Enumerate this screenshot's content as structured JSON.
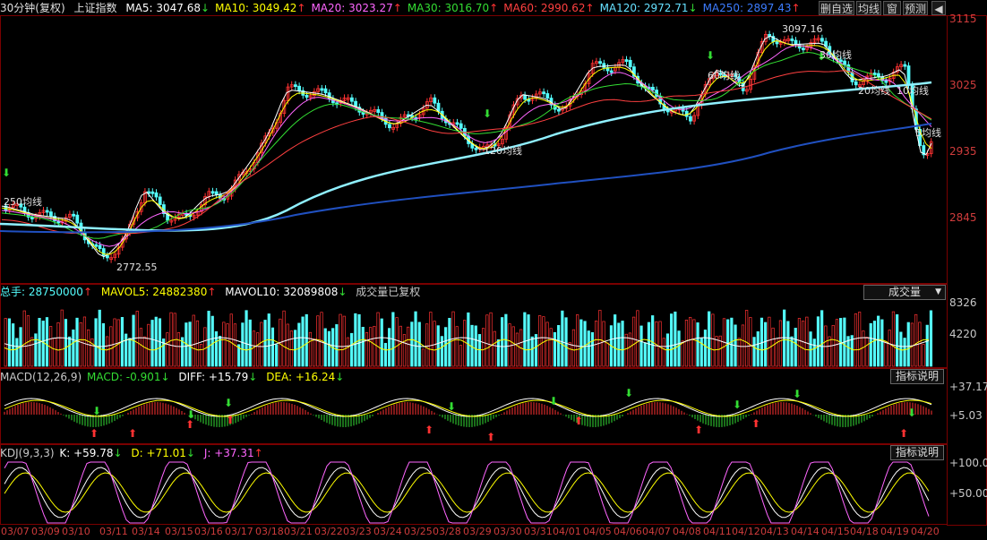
{
  "toolbar": {
    "period": "30分钟(复权)",
    "buttons": [
      "删自选",
      "均线",
      "窗",
      "预测"
    ],
    "arrow": "◀"
  },
  "main_header": {
    "index_name": "上证指数",
    "ma": [
      {
        "label": "MA5: 3047.68",
        "arrow": "↓",
        "color": "#ffffff"
      },
      {
        "label": "MA10: 3049.42",
        "arrow": "↑",
        "color": "#ffff00"
      },
      {
        "label": "MA20: 3023.27",
        "arrow": "↑",
        "color": "#ff66ff"
      },
      {
        "label": "MA30: 3016.70",
        "arrow": "↑",
        "color": "#33dd33"
      },
      {
        "label": "MA60: 2990.62",
        "arrow": "↑",
        "color": "#ff4040"
      },
      {
        "label": "MA120: 2972.71",
        "arrow": "↓",
        "color": "#66e0ff"
      },
      {
        "label": "MA250: 2897.43",
        "arrow": "↑",
        "color": "#3c7cff"
      }
    ]
  },
  "price_axis": [
    "3115",
    "3025",
    "2935",
    "2845"
  ],
  "annotations": {
    "high": "3097.16",
    "low": "2772.55",
    "ma_tags": [
      "250均线",
      "120均线",
      "60均线",
      "30均线",
      "20均线",
      "10均线",
      "5均线"
    ]
  },
  "volume_header": {
    "total": "总手: 28750000",
    "total_arrow": "↑",
    "mavol5": "MAVOL5: 24882380",
    "mavol5_arrow": "↑",
    "mavol10": "MAVOL10: 32089808",
    "mavol10_arrow": "↓",
    "note": "成交量已复权"
  },
  "volume_button": "成交量",
  "volume_axis": [
    "8326",
    "4220"
  ],
  "macd_header": {
    "title": "MACD(12,26,9)",
    "macd": "MACD: -0.901",
    "macd_arrow": "↓",
    "diff": "DIFF: +15.79",
    "diff_arrow": "↓",
    "dea": "DEA: +16.24",
    "dea_arrow": "↓"
  },
  "macd_button": "指标说明",
  "macd_axis": [
    "+37.17",
    "+5.03"
  ],
  "kdj_header": {
    "title": "KDJ(9,3,3)",
    "k": "K: +59.78",
    "k_arrow": "↓",
    "d": "D: +71.01",
    "d_arrow": "↓",
    "j": "J: +37.31",
    "j_arrow": "↑"
  },
  "kdj_button": "指标说明",
  "kdj_axis": [
    "+100.0",
    "+50.00"
  ],
  "dates": [
    "03/07",
    "03/09",
    "03/10",
    "03/11",
    "03/14",
    "03/15",
    "03/16",
    "03/17",
    "03/18",
    "03/21",
    "03/22",
    "03/23",
    "03/24",
    "03/25",
    "03/28",
    "03/29",
    "03/30",
    "03/31",
    "04/01",
    "04/05",
    "04/06",
    "04/07",
    "04/08",
    "04/11",
    "04/12",
    "04/13",
    "04/14",
    "04/15",
    "04/18",
    "04/19",
    "04/20"
  ],
  "colors": {
    "up": "#ff3232",
    "down": "#54fcfc",
    "frame": "#7a0000",
    "axis_text": "#d03c3c"
  }
}
